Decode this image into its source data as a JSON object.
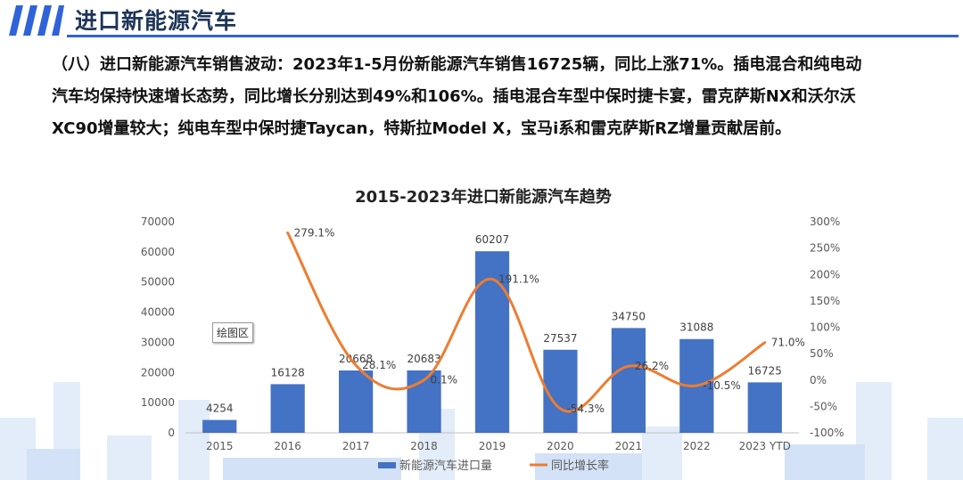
{
  "header": {
    "title": "进口新能源汽车"
  },
  "summary": {
    "lines": [
      "（八）进口新能源汽车销售波动：2023年1-5月份新能源汽车销售16725辆，同比上涨71%。插电混合和纯电动",
      "汽车均保持快速增长态势，同比增长分别达到49%和106%。插电混合车型中保时捷卡宴，雷克萨斯NX和沃尔沃",
      "XC90增量较大；纯电车型中保时捷Taycan，特斯拉Model X，宝马i系和雷克萨斯RZ增量贡献居前。"
    ]
  },
  "tooltip": "绘图区",
  "chart_data": {
    "type": "bar",
    "title": "2015-2023年进口新能源汽车趋势",
    "categories": [
      "2015",
      "2016",
      "2017",
      "2018",
      "2019",
      "2020",
      "2021",
      "2022",
      "2023 YTD"
    ],
    "series": [
      {
        "name": "新能源汽车进口量",
        "type": "bar",
        "axis": "left",
        "color": "#4472c4",
        "values": [
          4254,
          16128,
          20668,
          20683,
          60207,
          27537,
          34750,
          31088,
          16725
        ]
      },
      {
        "name": "同比增长率",
        "type": "line",
        "axis": "right",
        "color": "#ed7d31",
        "values": [
          null,
          279.1,
          28.1,
          0.1,
          191.1,
          -54.3,
          26.2,
          -10.5,
          71.0
        ],
        "labels": [
          null,
          "279.1%",
          "28.1%",
          "0.1%",
          "191.1%",
          "-54.3%",
          "26.2%",
          "-10.5%",
          "71.0%"
        ]
      }
    ],
    "y_left": {
      "min": 0,
      "max": 70000,
      "step": 10000,
      "ticks": [
        "0",
        "10000",
        "20000",
        "30000",
        "40000",
        "50000",
        "60000",
        "70000"
      ]
    },
    "y_right": {
      "min": -100,
      "max": 300,
      "step": 50,
      "ticks": [
        "-100%",
        "-50%",
        "0%",
        "50%",
        "100%",
        "150%",
        "200%",
        "250%",
        "300%"
      ]
    },
    "grid": false,
    "legend": "bottom",
    "colors": {
      "accent": "#2f63d8",
      "title": "#1d3557"
    }
  }
}
